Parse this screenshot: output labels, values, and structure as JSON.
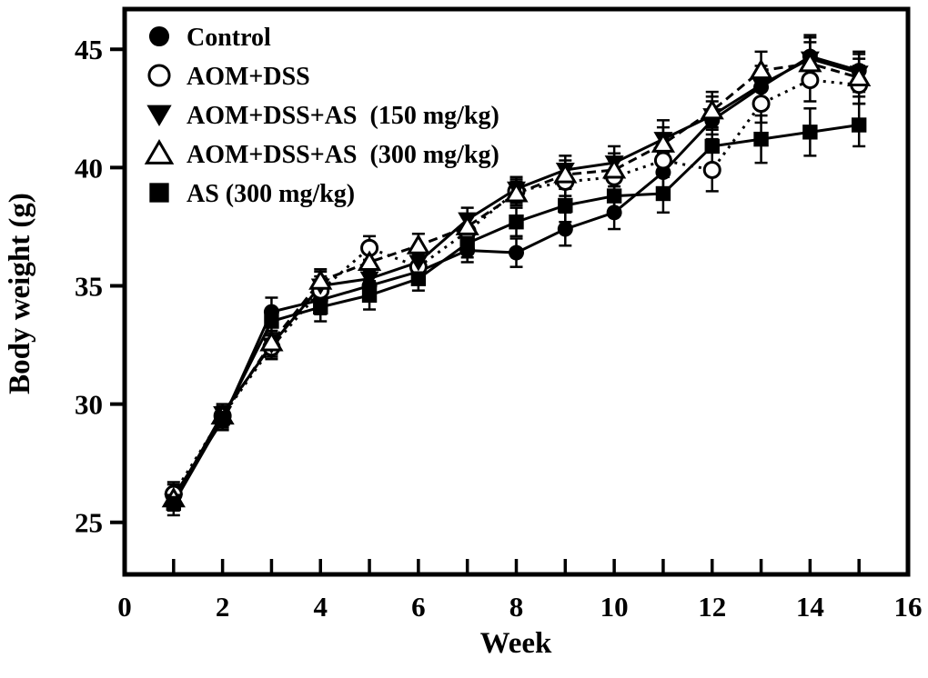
{
  "figure": {
    "background": "#ffffff",
    "foreground": "#000000",
    "description": "Body weight of mouse groups over 15 weeks"
  },
  "chart_data": {
    "type": "line",
    "title": "",
    "xlabel": "Week",
    "ylabel": "Body weight (g)",
    "xlim": [
      0,
      16
    ],
    "ylim": [
      22.8,
      46.7
    ],
    "x_major_ticks": [
      0,
      2,
      4,
      6,
      8,
      10,
      12,
      14,
      16
    ],
    "x_minor_ticks": [
      1,
      2,
      3,
      4,
      5,
      6,
      7,
      8,
      9,
      10,
      11,
      12,
      13,
      14,
      15
    ],
    "y_ticks": [
      25,
      30,
      35,
      40,
      45
    ],
    "grid": false,
    "legend_position": "top-left-inside",
    "x": [
      1,
      2,
      3,
      4,
      5,
      6,
      7,
      8,
      9,
      10,
      11,
      12,
      13,
      14,
      15
    ],
    "series": [
      {
        "name": "Control",
        "marker": "filled-circle",
        "line": "solid",
        "values": [
          26.1,
          29.3,
          33.9,
          34.4,
          35.0,
          35.6,
          36.5,
          36.4,
          37.4,
          38.1,
          39.8,
          42.0,
          43.4,
          44.7,
          44.1
        ],
        "errors": [
          0.5,
          0.4,
          0.6,
          0.6,
          0.6,
          0.5,
          0.5,
          0.6,
          0.7,
          0.7,
          0.8,
          0.8,
          0.7,
          0.9,
          0.8
        ]
      },
      {
        "name": "AOM+DSS",
        "marker": "open-circle",
        "line": "dotted",
        "values": [
          26.2,
          29.5,
          32.4,
          34.8,
          36.6,
          35.8,
          37.3,
          39.0,
          39.4,
          39.6,
          40.3,
          39.9,
          42.7,
          43.7,
          43.5
        ],
        "errors": [
          0.5,
          0.4,
          0.5,
          0.6,
          0.5,
          0.5,
          0.6,
          0.5,
          0.6,
          0.7,
          0.7,
          0.9,
          0.8,
          0.9,
          0.8
        ]
      },
      {
        "name": "AOM+DSS+AS  (150 mg/kg)",
        "marker": "filled-triangle-down",
        "line": "solid",
        "values": [
          25.9,
          29.6,
          32.5,
          35.0,
          35.3,
          36.0,
          37.8,
          39.1,
          39.9,
          40.2,
          41.2,
          42.2,
          43.5,
          44.6,
          44.0
        ],
        "errors": [
          0.4,
          0.4,
          0.5,
          0.6,
          0.5,
          0.5,
          0.5,
          0.5,
          0.6,
          0.7,
          0.8,
          0.8,
          0.8,
          0.9,
          0.8
        ]
      },
      {
        "name": "AOM+DSS+AS  (300 mg/kg)",
        "marker": "open-triangle-up",
        "line": "dashed",
        "values": [
          26.0,
          29.5,
          32.6,
          35.2,
          36.0,
          36.7,
          37.5,
          38.9,
          39.7,
          39.9,
          41.0,
          42.4,
          44.1,
          44.4,
          43.8
        ],
        "errors": [
          0.4,
          0.4,
          0.5,
          0.5,
          0.5,
          0.5,
          0.5,
          0.5,
          0.6,
          0.7,
          0.7,
          0.8,
          0.8,
          0.9,
          0.8
        ]
      },
      {
        "name": "AS (300 mg/kg)",
        "marker": "filled-square",
        "line": "solid",
        "values": [
          25.8,
          29.4,
          33.5,
          34.1,
          34.6,
          35.3,
          36.8,
          37.7,
          38.4,
          38.8,
          38.9,
          40.9,
          41.2,
          41.5,
          41.8
        ],
        "errors": [
          0.5,
          0.4,
          0.5,
          0.6,
          0.6,
          0.5,
          0.6,
          0.6,
          0.7,
          0.8,
          0.8,
          0.8,
          1.0,
          1.0,
          0.9
        ]
      }
    ],
    "colors": {
      "series_color": "#000000",
      "marker_open_fill": "#ffffff"
    }
  }
}
